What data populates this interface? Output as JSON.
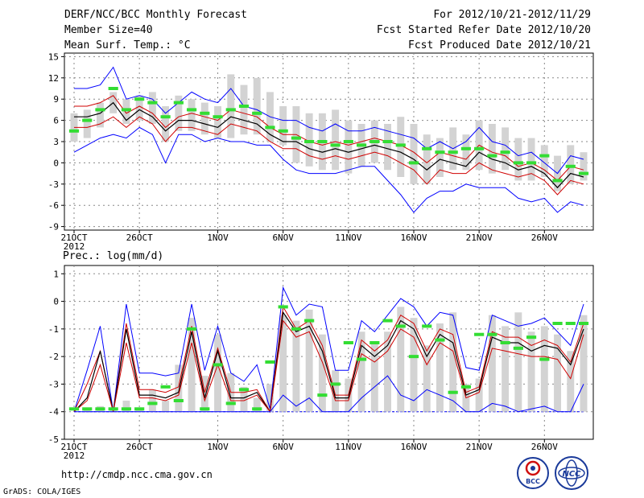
{
  "header": {
    "title": "DERF/NCC/BCC Monthly Forecast",
    "member_size": "Member Size=40",
    "variable": "Mean Surf. Temp.: °C",
    "period": "For 2012/10/21-2012/11/29",
    "start_date": "Fcst Started Refer Date 2012/10/20",
    "produced_date": "Fcst Produced Date 2012/10/21"
  },
  "lower_panel_label": "Prec.: log(mm/d)",
  "footer": {
    "url": "http://cmdp.ncc.cma.gov.cn",
    "credit": "GrADS: COLA/IGES",
    "logo_left_text": "BCC",
    "logo_right_text": "NCC"
  },
  "colors": {
    "ensemble_mean": "#000000",
    "spread_max_min": "#0000ff",
    "percentile": "#d00000",
    "member_median": "#33dd33",
    "box": "#d3d3d3",
    "baseline": "#0000ff"
  },
  "chart_data": [
    {
      "type": "line",
      "name": "temperature",
      "x_tick_labels": [
        "21OCT",
        "26OCT",
        "1NOV",
        "6NOV",
        "11NOV",
        "16NOV",
        "21NOV",
        "26NOV"
      ],
      "x_year_label": "2012",
      "x_tick_day_index": [
        0,
        5,
        11,
        16,
        21,
        26,
        31,
        36
      ],
      "ylim": [
        -9.5,
        15.5
      ],
      "y_ticks": [
        15,
        12,
        9,
        6,
        3,
        0,
        -3,
        -6,
        -9
      ],
      "grid": true,
      "days": 40,
      "series": [
        {
          "name": "max",
          "values": [
            10.5,
            10.5,
            11,
            13.5,
            9,
            9.5,
            9,
            7,
            8.5,
            10,
            9,
            8.5,
            10.5,
            8,
            7.5,
            6.5,
            6,
            6,
            5,
            4.5,
            5.5,
            4.5,
            4.5,
            5,
            4.5,
            4,
            3.5,
            2,
            3,
            2,
            3,
            5,
            3,
            2.5,
            1,
            1.5,
            0,
            -1.5,
            1,
            0.5
          ]
        },
        {
          "name": "p90",
          "values": [
            8,
            8,
            8.5,
            9.5,
            7,
            8,
            7,
            5,
            6.5,
            7,
            6.5,
            6,
            7.5,
            7,
            6.5,
            5,
            4,
            4,
            3,
            2.5,
            3,
            2.5,
            3,
            3.5,
            3,
            2.5,
            1.5,
            0,
            1.5,
            1,
            0.5,
            2.5,
            1.5,
            1,
            -0.5,
            0,
            -1,
            -2.5,
            -0.5,
            -1
          ]
        },
        {
          "name": "mean",
          "values": [
            6.5,
            6.5,
            7,
            8.5,
            6,
            7.5,
            6.5,
            4.5,
            6,
            6,
            5.5,
            5,
            6.5,
            6,
            5.5,
            4,
            3,
            3,
            2,
            1.5,
            2,
            1.5,
            2,
            2.5,
            2,
            1.5,
            0.5,
            -1,
            0.5,
            0,
            -0.5,
            1.5,
            0.5,
            0,
            -1,
            -0.5,
            -1.5,
            -3.5,
            -1.5,
            -2
          ]
        },
        {
          "name": "p10",
          "values": [
            5,
            5,
            5.5,
            6.5,
            5,
            6.5,
            5.5,
            3,
            5,
            5,
            4.5,
            4,
            5.5,
            5,
            4.5,
            3,
            2,
            2,
            1,
            0.5,
            1,
            0.5,
            1,
            1.5,
            1,
            0,
            -1,
            -3,
            -1,
            -1.5,
            -1.5,
            0,
            -1,
            -1.5,
            -2,
            -1.5,
            -2.5,
            -4.5,
            -2.5,
            -3
          ]
        },
        {
          "name": "min",
          "values": [
            1.5,
            2.5,
            3.5,
            4,
            3.5,
            5,
            4,
            0,
            4,
            4,
            3,
            3.5,
            3,
            3,
            2.5,
            2.5,
            0.5,
            -1,
            -1.5,
            -1.5,
            -1.5,
            -1,
            -0.5,
            -0.5,
            -2.5,
            -4.5,
            -7,
            -5,
            -4,
            -4,
            -3,
            -3.5,
            -3.5,
            -3.5,
            -5,
            -5.5,
            -5,
            -7,
            -5.5,
            -6
          ]
        }
      ],
      "box_high": [
        7,
        7.5,
        8.5,
        10,
        9,
        9.5,
        10,
        8,
        9.5,
        9,
        8.5,
        8,
        12.5,
        11,
        12,
        10,
        8,
        8,
        7,
        7,
        7.5,
        6,
        5.5,
        6,
        5.5,
        6.5,
        5.5,
        4,
        3.5,
        5,
        4,
        6,
        5.5,
        5,
        3.5,
        3.5,
        2.5,
        1,
        2.5,
        1.5
      ],
      "box_low": [
        3,
        3.5,
        5,
        7,
        5.5,
        6,
        5.5,
        3,
        4.5,
        4.5,
        4,
        3.5,
        3.5,
        4,
        4,
        3,
        2.5,
        0,
        -0.5,
        -1,
        -1,
        -1.5,
        -0.5,
        0,
        -1,
        -2,
        -3,
        -3,
        -2,
        -1,
        -1,
        -1,
        -1.5,
        -1,
        -2.5,
        -2.5,
        -2,
        -4,
        -3,
        -2.5
      ],
      "median_marks": [
        4.5,
        6,
        7.5,
        10.5,
        7.5,
        9,
        8.5,
        6.5,
        8.5,
        7.5,
        7,
        6.5,
        7.5,
        8,
        7,
        5,
        4.5,
        3.5,
        3,
        3,
        2.5,
        3,
        2.5,
        3,
        3,
        2.5,
        0,
        2,
        1.5,
        1.5,
        2,
        2,
        1,
        1.5,
        0,
        0,
        1,
        -2.5,
        -0.5,
        -1.5
      ]
    },
    {
      "type": "line",
      "name": "precipitation",
      "x_tick_labels": [
        "21OCT",
        "26OCT",
        "1NOV",
        "6NOV",
        "11NOV",
        "16NOV",
        "21NOV",
        "26NOV"
      ],
      "x_year_label": "2012",
      "x_tick_day_index": [
        0,
        5,
        11,
        16,
        21,
        26,
        31,
        36
      ],
      "ylim": [
        -5,
        1.3
      ],
      "y_ticks": [
        1,
        0,
        -1,
        -2,
        -3,
        -4,
        -5
      ],
      "grid": true,
      "days": 40,
      "baseline": -4,
      "series": [
        {
          "name": "max",
          "values": [
            -4,
            -2.5,
            -0.9,
            -4,
            -0.1,
            -2.6,
            -2.6,
            -2.7,
            -2.6,
            -0.1,
            -2.5,
            -0.9,
            -2.6,
            -2.9,
            -2.3,
            -3.9,
            0.5,
            -0.5,
            -0.1,
            -0.2,
            -2.5,
            -2.5,
            -0.7,
            -1.1,
            -0.5,
            0.1,
            -0.2,
            -0.9,
            -0.4,
            -0.5,
            -2.4,
            -2.5,
            -0.5,
            -0.7,
            -0.9,
            -0.8,
            -0.6,
            -1.1,
            -1.6,
            -0.1
          ]
        },
        {
          "name": "p90",
          "values": [
            -4,
            -3,
            -1.8,
            -4,
            -0.8,
            -3.2,
            -3.2,
            -3.3,
            -3.1,
            -0.9,
            -3.3,
            -1.7,
            -3.3,
            -3.3,
            -3.2,
            -4,
            -0.2,
            -1,
            -0.7,
            -1.6,
            -3.4,
            -3.4,
            -1.4,
            -1.8,
            -1.4,
            -0.5,
            -0.8,
            -1.8,
            -1,
            -1.2,
            -3.3,
            -3.1,
            -1.1,
            -1.3,
            -1.3,
            -1.6,
            -1.4,
            -1.6,
            -2.2,
            -0.8
          ]
        },
        {
          "name": "mean",
          "values": [
            -4,
            -3.5,
            -1.8,
            -4,
            -1,
            -3.4,
            -3.4,
            -3.5,
            -3.3,
            -1.1,
            -3.5,
            -1.8,
            -3.5,
            -3.5,
            -3.3,
            -4,
            -0.4,
            -1.1,
            -0.9,
            -1.8,
            -3.5,
            -3.5,
            -1.6,
            -2,
            -1.6,
            -0.7,
            -1,
            -2,
            -1.2,
            -1.5,
            -3.4,
            -3.2,
            -1.3,
            -1.5,
            -1.5,
            -1.8,
            -1.6,
            -1.7,
            -2.3,
            -1
          ]
        },
        {
          "name": "p10",
          "values": [
            -4,
            -3.6,
            -2.3,
            -4,
            -1.5,
            -3.5,
            -3.5,
            -3.6,
            -3.4,
            -1.5,
            -3.6,
            -2.3,
            -3.6,
            -3.6,
            -3.4,
            -4,
            -0.7,
            -1.3,
            -1.1,
            -2.2,
            -3.6,
            -3.6,
            -1.9,
            -2.2,
            -1.8,
            -1,
            -1.3,
            -2.3,
            -1.5,
            -1.8,
            -3.5,
            -3.3,
            -1.7,
            -1.8,
            -1.9,
            -2,
            -2,
            -2.1,
            -2.8,
            -1.2
          ]
        },
        {
          "name": "min",
          "values": [
            -4,
            -4,
            -4,
            -4,
            -4,
            -4,
            -4,
            -4,
            -4,
            -4,
            -4,
            -4,
            -4,
            -4,
            -4,
            -4,
            -3.4,
            -3.8,
            -3.5,
            -4,
            -4,
            -4,
            -3.5,
            -3.1,
            -2.7,
            -3.4,
            -3.6,
            -3.2,
            -3.4,
            -3.6,
            -4,
            -4,
            -3.7,
            -3.8,
            -4,
            -3.9,
            -3.8,
            -4,
            -4,
            -3
          ]
        }
      ],
      "box_high": [
        -4,
        -3.9,
        -3.8,
        -3.9,
        -3.6,
        -3.9,
        -3.2,
        -3.6,
        -2.3,
        -0.6,
        -2.7,
        -1.2,
        -2.6,
        -3.1,
        -3.5,
        -3,
        -0.5,
        -0.7,
        -0.3,
        -1.2,
        -2.5,
        -2.8,
        -1.1,
        -1.5,
        -1.1,
        -0.2,
        -0.6,
        -1.6,
        -0.8,
        -0.4,
        -3,
        -2.8,
        -0.5,
        -0.9,
        -0.4,
        -1.1,
        -0.9,
        -1.2,
        -1.8,
        -0.5
      ],
      "box_low": [
        -4,
        -4,
        -4,
        -4,
        -4,
        -4,
        -4,
        -4,
        -4,
        -4,
        -4,
        -4,
        -4,
        -4,
        -4,
        -4,
        -4,
        -4,
        -4,
        -4,
        -4,
        -4,
        -4,
        -4,
        -4,
        -4,
        -4,
        -4,
        -4,
        -4,
        -4,
        -4,
        -4,
        -4,
        -4,
        -4,
        -4,
        -4,
        -4,
        -4
      ],
      "median_marks": [
        -3.9,
        -3.9,
        -3.9,
        -3.9,
        -3.9,
        -3.9,
        -3.7,
        -3.1,
        -3.6,
        -1,
        -3.9,
        -2.3,
        -3.7,
        -3.2,
        -3.9,
        -2.2,
        -0.2,
        -1,
        -0.7,
        -3.4,
        -3,
        -1.5,
        -2.1,
        -1.5,
        -0.7,
        -0.9,
        -2,
        -0.9,
        -1.4,
        -3.3,
        -3.1,
        -1.2,
        -1.2,
        -1.5,
        -1.7,
        -1.3,
        -2.1,
        -0.8,
        -0.8,
        -0.8
      ]
    }
  ]
}
